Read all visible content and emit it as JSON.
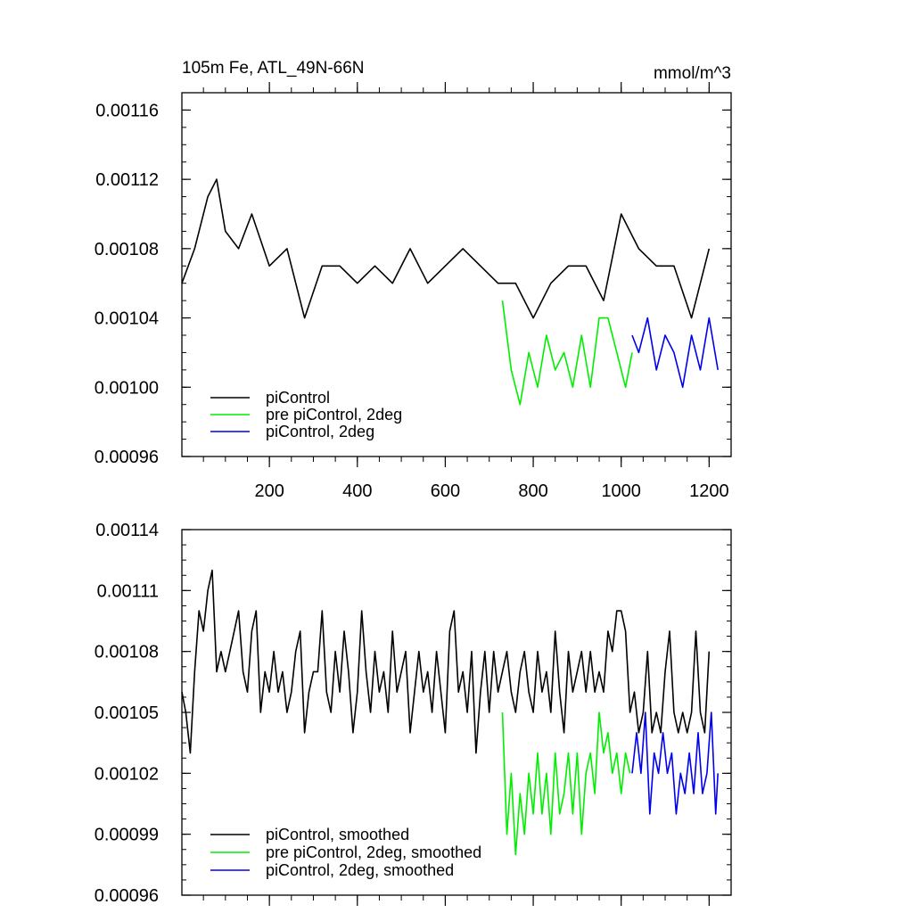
{
  "chart_data": [
    {
      "type": "line",
      "title": "105m Fe, ATL_49N-66N",
      "units": "mmol/m^3",
      "xlim": [
        1,
        1250
      ],
      "ylim": [
        0.00096,
        0.00117
      ],
      "xticks": [
        200,
        400,
        600,
        800,
        1000,
        1200
      ],
      "xtick_labels": [
        "200",
        "400",
        "600",
        "800",
        "1000",
        "1200"
      ],
      "yticks": [
        0.00096,
        0.001,
        0.00104,
        0.00108,
        0.00112,
        0.00116
      ],
      "ytick_labels": [
        "0.00096",
        "0.00100",
        "0.00104",
        "0.00108",
        "0.00112",
        "0.00116"
      ],
      "grid": false,
      "legend_position": "bottom-left",
      "series": [
        {
          "name": "piControl",
          "color": "#000000",
          "x": [
            1,
            30,
            60,
            80,
            100,
            130,
            160,
            200,
            240,
            280,
            320,
            360,
            400,
            440,
            480,
            520,
            560,
            600,
            640,
            680,
            720,
            760,
            800,
            840,
            880,
            920,
            960,
            1000,
            1040,
            1080,
            1120,
            1160,
            1200
          ],
          "y": [
            0.00106,
            0.00108,
            0.00111,
            0.00112,
            0.00109,
            0.00108,
            0.0011,
            0.00107,
            0.00108,
            0.00104,
            0.00107,
            0.00107,
            0.00106,
            0.00107,
            0.00106,
            0.00108,
            0.00106,
            0.00107,
            0.00108,
            0.00107,
            0.00106,
            0.00106,
            0.00104,
            0.00106,
            0.00107,
            0.00107,
            0.00105,
            0.0011,
            0.00108,
            0.00107,
            0.00107,
            0.00104,
            0.00108
          ]
        },
        {
          "name": "pre piControl, 2deg",
          "color": "#00ee00",
          "x": [
            730,
            750,
            770,
            790,
            810,
            830,
            850,
            870,
            890,
            910,
            930,
            950,
            970,
            990,
            1010,
            1025
          ],
          "y": [
            0.00105,
            0.00101,
            0.00099,
            0.00102,
            0.001,
            0.00103,
            0.00101,
            0.00102,
            0.001,
            0.00103,
            0.001,
            0.00104,
            0.00104,
            0.00102,
            0.001,
            0.00102
          ]
        },
        {
          "name": "piControl, 2deg",
          "color": "#0000ee",
          "x": [
            1025,
            1040,
            1060,
            1080,
            1100,
            1120,
            1140,
            1160,
            1180,
            1200,
            1220
          ],
          "y": [
            0.00103,
            0.00102,
            0.00104,
            0.00101,
            0.00103,
            0.00102,
            0.001,
            0.00103,
            0.00101,
            0.00104,
            0.00101
          ]
        }
      ]
    },
    {
      "type": "line",
      "xlim": [
        1,
        1250
      ],
      "ylim": [
        0.00096,
        0.00114
      ],
      "xticks": [
        200,
        400,
        600,
        800,
        1000,
        1200
      ],
      "yticks": [
        0.00096,
        0.00099,
        0.00102,
        0.00105,
        0.00108,
        0.00111,
        0.00114
      ],
      "ytick_labels": [
        "0.00096",
        "0.00099",
        "0.00102",
        "0.00105",
        "0.00108",
        "0.00111",
        "0.00114"
      ],
      "grid": false,
      "legend_position": "bottom-left",
      "series": [
        {
          "name": "piControl, smoothed",
          "color": "#000000",
          "x": [
            1,
            10,
            20,
            30,
            40,
            50,
            60,
            70,
            80,
            90,
            100,
            110,
            120,
            130,
            140,
            150,
            160,
            170,
            180,
            190,
            200,
            210,
            220,
            230,
            240,
            250,
            260,
            270,
            280,
            290,
            300,
            310,
            320,
            330,
            340,
            350,
            360,
            370,
            380,
            390,
            400,
            410,
            420,
            430,
            440,
            450,
            460,
            470,
            480,
            490,
            500,
            510,
            520,
            530,
            540,
            550,
            560,
            570,
            580,
            590,
            600,
            610,
            620,
            630,
            640,
            650,
            660,
            670,
            680,
            690,
            700,
            710,
            720,
            730,
            740,
            750,
            760,
            770,
            780,
            790,
            800,
            810,
            820,
            830,
            840,
            850,
            860,
            870,
            880,
            890,
            900,
            910,
            920,
            930,
            940,
            950,
            960,
            970,
            980,
            990,
            1000,
            1010,
            1020,
            1030,
            1040,
            1050,
            1060,
            1070,
            1080,
            1090,
            1100,
            1110,
            1120,
            1130,
            1140,
            1150,
            1160,
            1170,
            1180,
            1190,
            1200
          ],
          "y": [
            0.00106,
            0.00105,
            0.00103,
            0.00107,
            0.0011,
            0.00109,
            0.00111,
            0.00112,
            0.00107,
            0.00108,
            0.00107,
            0.00108,
            0.00109,
            0.0011,
            0.00107,
            0.00106,
            0.00109,
            0.0011,
            0.00105,
            0.00107,
            0.00106,
            0.00108,
            0.00106,
            0.00107,
            0.00105,
            0.00106,
            0.00108,
            0.00109,
            0.00104,
            0.00106,
            0.00107,
            0.00107,
            0.0011,
            0.00106,
            0.00105,
            0.00108,
            0.00106,
            0.00109,
            0.00107,
            0.00104,
            0.00106,
            0.0011,
            0.00107,
            0.00105,
            0.00108,
            0.00106,
            0.00107,
            0.00105,
            0.00109,
            0.00106,
            0.00107,
            0.00108,
            0.00104,
            0.00106,
            0.00108,
            0.00106,
            0.00107,
            0.00105,
            0.00108,
            0.00106,
            0.00104,
            0.00109,
            0.0011,
            0.00106,
            0.00107,
            0.00105,
            0.00108,
            0.00103,
            0.00106,
            0.00108,
            0.00105,
            0.00108,
            0.00106,
            0.00107,
            0.00108,
            0.00106,
            0.00105,
            0.00107,
            0.00108,
            0.00106,
            0.00105,
            0.00108,
            0.00106,
            0.00107,
            0.00105,
            0.00109,
            0.00106,
            0.00104,
            0.00108,
            0.00106,
            0.00107,
            0.00108,
            0.00106,
            0.00108,
            0.00106,
            0.00107,
            0.00106,
            0.00109,
            0.00108,
            0.0011,
            0.0011,
            0.00109,
            0.00105,
            0.00106,
            0.00104,
            0.00105,
            0.00108,
            0.00104,
            0.00105,
            0.00104,
            0.00107,
            0.00109,
            0.00105,
            0.00104,
            0.00105,
            0.00104,
            0.00105,
            0.00109,
            0.00105,
            0.00104,
            0.00108
          ]
        },
        {
          "name": "pre piControl, 2deg, smoothed",
          "color": "#00ee00",
          "x": [
            730,
            740,
            750,
            760,
            770,
            780,
            790,
            800,
            810,
            820,
            830,
            840,
            850,
            860,
            870,
            880,
            890,
            900,
            910,
            920,
            930,
            940,
            950,
            960,
            970,
            980,
            990,
            1000,
            1010,
            1020
          ],
          "y": [
            0.00105,
            0.00099,
            0.00102,
            0.00098,
            0.00101,
            0.00099,
            0.00102,
            0.001,
            0.00103,
            0.001,
            0.00102,
            0.00099,
            0.00103,
            0.001,
            0.00101,
            0.00103,
            0.001,
            0.00103,
            0.00099,
            0.00102,
            0.00103,
            0.00101,
            0.00105,
            0.00103,
            0.00104,
            0.00102,
            0.00103,
            0.00101,
            0.00103,
            0.00102
          ]
        },
        {
          "name": "piControl, 2deg, smoothed",
          "color": "#0000ee",
          "x": [
            1025,
            1035,
            1045,
            1055,
            1065,
            1075,
            1085,
            1095,
            1105,
            1115,
            1125,
            1135,
            1145,
            1155,
            1165,
            1175,
            1185,
            1195,
            1205,
            1215,
            1220
          ],
          "y": [
            0.00102,
            0.00104,
            0.00102,
            0.00105,
            0.001,
            0.00103,
            0.00102,
            0.00104,
            0.00102,
            0.00103,
            0.001,
            0.00102,
            0.00101,
            0.00103,
            0.00101,
            0.00104,
            0.00101,
            0.00102,
            0.00105,
            0.001,
            0.00102
          ]
        }
      ]
    }
  ]
}
